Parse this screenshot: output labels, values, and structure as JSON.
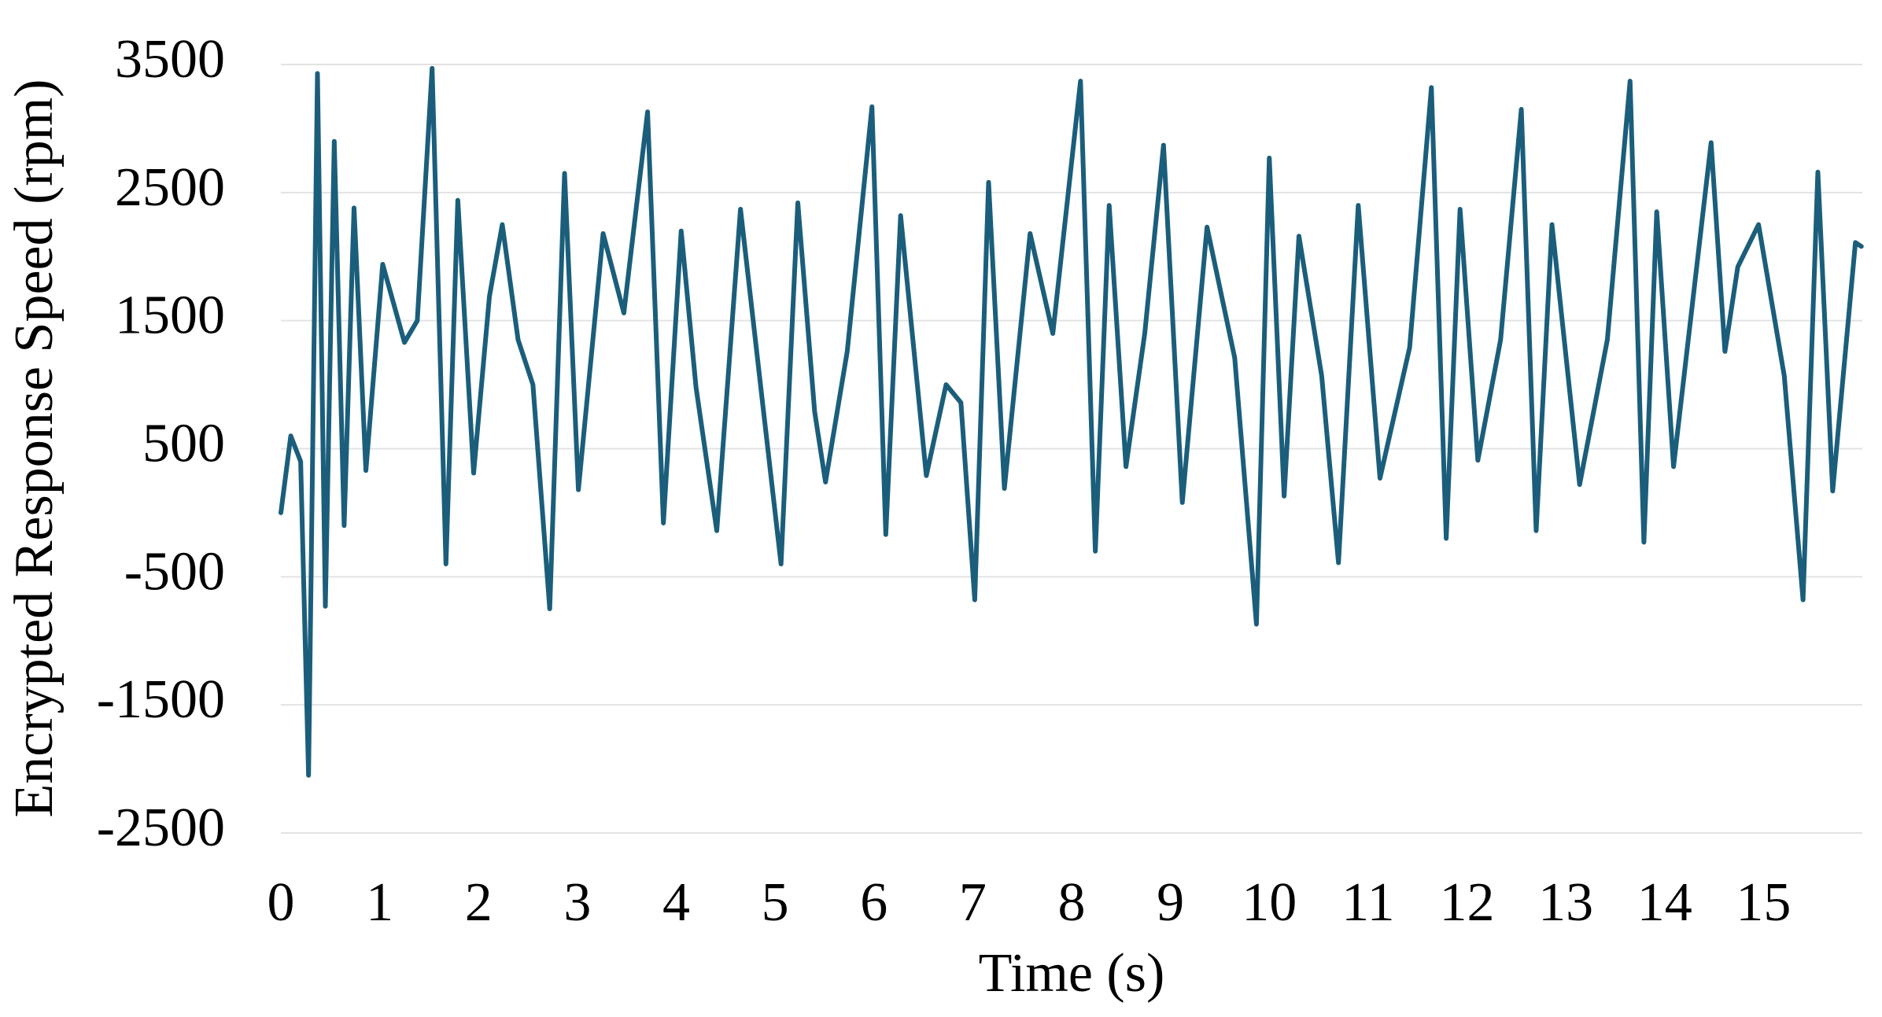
{
  "chart_data": {
    "type": "line",
    "xlabel": "Time (s)",
    "ylabel": "Encrypted Response Speed (rpm)",
    "xlim": [
      0,
      16
    ],
    "ylim": [
      -2500,
      3500
    ],
    "xticks": [
      0,
      1,
      2,
      3,
      4,
      5,
      6,
      7,
      8,
      9,
      10,
      11,
      12,
      13,
      14,
      15
    ],
    "yticks": [
      3500,
      2500,
      1500,
      500,
      -500,
      -1500,
      -2500
    ],
    "grid": true,
    "series": [
      {
        "color": "#1b5e7b",
        "x": [
          0,
          0.1,
          0.2,
          0.28,
          0.37,
          0.45,
          0.54,
          0.64,
          0.74,
          0.86,
          1.03,
          1.25,
          1.38,
          1.53,
          1.67,
          1.79,
          1.95,
          2.11,
          2.24,
          2.4,
          2.55,
          2.72,
          2.87,
          3.01,
          3.26,
          3.47,
          3.71,
          3.87,
          4.05,
          4.2,
          4.41,
          4.65,
          4.87,
          5.06,
          5.23,
          5.4,
          5.51,
          5.73,
          5.98,
          6.12,
          6.27,
          6.53,
          6.73,
          6.88,
          7.02,
          7.16,
          7.32,
          7.58,
          7.81,
          8.09,
          8.24,
          8.38,
          8.55,
          8.74,
          8.93,
          9.12,
          9.37,
          9.65,
          9.87,
          10.0,
          10.15,
          10.3,
          10.53,
          10.7,
          10.9,
          11.12,
          11.42,
          11.64,
          11.79,
          11.93,
          12.11,
          12.34,
          12.55,
          12.7,
          12.86,
          13.14,
          13.42,
          13.65,
          13.79,
          13.92,
          14.09,
          14.47,
          14.61,
          14.74,
          14.95,
          15.21,
          15.4,
          15.55,
          15.7,
          15.93,
          15.99
        ],
        "values": [
          0,
          600,
          400,
          -2050,
          3430,
          -730,
          2900,
          -100,
          2380,
          330,
          1940,
          1330,
          1500,
          3470,
          -400,
          2440,
          310,
          1690,
          2250,
          1350,
          1000,
          -750,
          2650,
          180,
          2180,
          1560,
          3130,
          -80,
          2200,
          980,
          -140,
          2370,
          880,
          -400,
          2420,
          790,
          240,
          1260,
          3170,
          -170,
          2320,
          290,
          1000,
          860,
          -680,
          2580,
          190,
          2180,
          1400,
          3370,
          -300,
          2400,
          360,
          1400,
          2870,
          80,
          2230,
          1210,
          -870,
          2770,
          130,
          2160,
          1070,
          -390,
          2400,
          270,
          1290,
          3320,
          -200,
          2370,
          410,
          1350,
          3150,
          -140,
          2250,
          220,
          1350,
          3370,
          -230,
          2350,
          360,
          2890,
          1260,
          1920,
          2250,
          1070,
          -680,
          2660,
          170,
          2110,
          2080
        ]
      }
    ]
  }
}
